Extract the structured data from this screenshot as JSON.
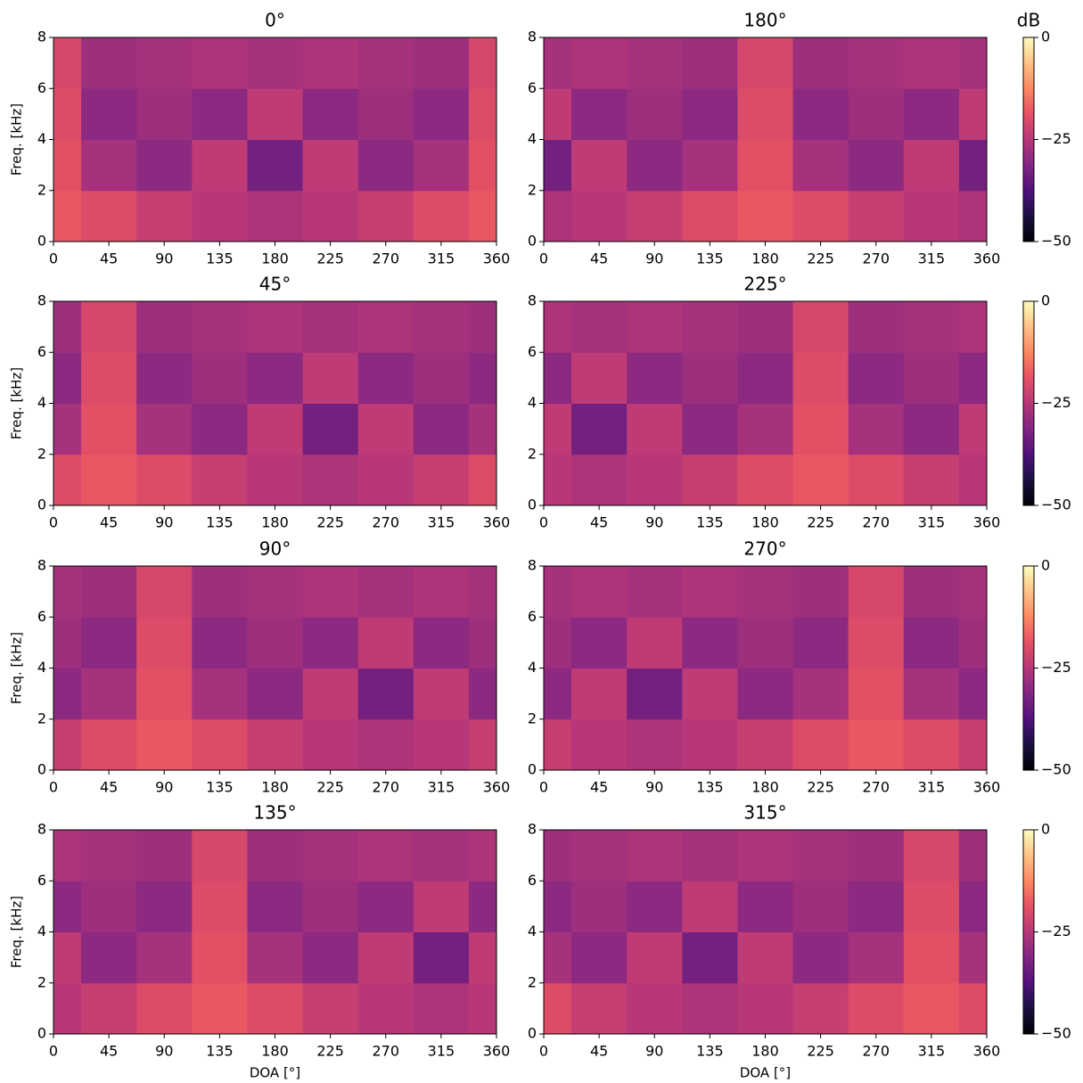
{
  "chart_data": [
    {
      "type": "heatmap",
      "title": "0°",
      "ylabel": "Freq. [kHz]",
      "x": [
        0,
        45,
        90,
        135,
        180,
        225,
        270,
        315,
        360
      ],
      "y": [
        1,
        3,
        5,
        7
      ],
      "xlim": [
        0,
        360
      ],
      "ylim": [
        0,
        8
      ],
      "xticks": [
        0,
        45,
        90,
        135,
        180,
        225,
        270,
        315,
        360
      ],
      "yticks": [
        0,
        2,
        4,
        6,
        8
      ],
      "zlim": [
        -50,
        0
      ],
      "colormap": "magma",
      "values": [
        [
          -18,
          -20,
          -23,
          -25,
          -26,
          -25,
          -23,
          -20,
          -18
        ],
        [
          -19,
          -27,
          -30,
          -24,
          -33,
          -24,
          -30,
          -27,
          -19
        ],
        [
          -20,
          -30,
          -28,
          -30,
          -24,
          -30,
          -28,
          -30,
          -20
        ],
        [
          -21,
          -28,
          -27,
          -26,
          -27,
          -26,
          -27,
          -28,
          -21
        ]
      ]
    },
    {
      "type": "heatmap",
      "title": "180°",
      "x": [
        0,
        45,
        90,
        135,
        180,
        225,
        270,
        315,
        360
      ],
      "y": [
        1,
        3,
        5,
        7
      ],
      "xlim": [
        0,
        360
      ],
      "ylim": [
        0,
        8
      ],
      "xticks": [
        0,
        45,
        90,
        135,
        180,
        225,
        270,
        315,
        360
      ],
      "yticks": [
        0,
        2,
        4,
        6,
        8
      ],
      "zlim": [
        -50,
        0
      ],
      "colormap": "magma",
      "colorbar": {
        "label": "dB",
        "ticks": [
          0,
          {
            "value": -25,
            "label": "−25"
          },
          {
            "value": -50,
            "label": "−50"
          }
        ]
      },
      "values": [
        [
          -26,
          -25,
          -23,
          -20,
          -18,
          -20,
          -23,
          -25,
          -26
        ],
        [
          -33,
          -24,
          -30,
          -27,
          -19,
          -27,
          -30,
          -24,
          -33
        ],
        [
          -24,
          -30,
          -28,
          -30,
          -20,
          -30,
          -28,
          -30,
          -24
        ],
        [
          -27,
          -26,
          -27,
          -28,
          -21,
          -28,
          -27,
          -26,
          -27
        ]
      ]
    },
    {
      "type": "heatmap",
      "title": "45°",
      "ylabel": "Freq. [kHz]",
      "x": [
        0,
        45,
        90,
        135,
        180,
        225,
        270,
        315,
        360
      ],
      "y": [
        1,
        3,
        5,
        7
      ],
      "xlim": [
        0,
        360
      ],
      "ylim": [
        0,
        8
      ],
      "xticks": [
        0,
        45,
        90,
        135,
        180,
        225,
        270,
        315,
        360
      ],
      "yticks": [
        0,
        2,
        4,
        6,
        8
      ],
      "zlim": [
        -50,
        0
      ],
      "colormap": "magma",
      "values": [
        [
          -20,
          -18,
          -20,
          -23,
          -25,
          -26,
          -25,
          -23,
          -20
        ],
        [
          -27,
          -19,
          -27,
          -30,
          -24,
          -33,
          -24,
          -30,
          -27
        ],
        [
          -30,
          -20,
          -30,
          -28,
          -30,
          -24,
          -30,
          -28,
          -30
        ],
        [
          -28,
          -21,
          -28,
          -27,
          -26,
          -27,
          -26,
          -27,
          -28
        ]
      ]
    },
    {
      "type": "heatmap",
      "title": "225°",
      "x": [
        0,
        45,
        90,
        135,
        180,
        225,
        270,
        315,
        360
      ],
      "y": [
        1,
        3,
        5,
        7
      ],
      "xlim": [
        0,
        360
      ],
      "ylim": [
        0,
        8
      ],
      "xticks": [
        0,
        45,
        90,
        135,
        180,
        225,
        270,
        315,
        360
      ],
      "yticks": [
        0,
        2,
        4,
        6,
        8
      ],
      "zlim": [
        -50,
        0
      ],
      "colormap": "magma",
      "colorbar": {
        "ticks": [
          0,
          {
            "value": -25,
            "label": "−25"
          },
          {
            "value": -50,
            "label": "−50"
          }
        ]
      },
      "values": [
        [
          -25,
          -26,
          -25,
          -23,
          -20,
          -18,
          -20,
          -23,
          -25
        ],
        [
          -24,
          -33,
          -24,
          -30,
          -27,
          -19,
          -27,
          -30,
          -24
        ],
        [
          -30,
          -24,
          -30,
          -28,
          -30,
          -20,
          -30,
          -28,
          -30
        ],
        [
          -26,
          -27,
          -26,
          -27,
          -28,
          -21,
          -28,
          -27,
          -26
        ]
      ]
    },
    {
      "type": "heatmap",
      "title": "90°",
      "ylabel": "Freq. [kHz]",
      "x": [
        0,
        45,
        90,
        135,
        180,
        225,
        270,
        315,
        360
      ],
      "y": [
        1,
        3,
        5,
        7
      ],
      "xlim": [
        0,
        360
      ],
      "ylim": [
        0,
        8
      ],
      "xticks": [
        0,
        45,
        90,
        135,
        180,
        225,
        270,
        315,
        360
      ],
      "yticks": [
        0,
        2,
        4,
        6,
        8
      ],
      "zlim": [
        -50,
        0
      ],
      "colormap": "magma",
      "values": [
        [
          -23,
          -20,
          -18,
          -20,
          -23,
          -25,
          -26,
          -25,
          -23
        ],
        [
          -30,
          -27,
          -19,
          -27,
          -30,
          -24,
          -33,
          -24,
          -30
        ],
        [
          -28,
          -30,
          -20,
          -30,
          -28,
          -30,
          -24,
          -30,
          -28
        ],
        [
          -27,
          -28,
          -21,
          -28,
          -27,
          -26,
          -27,
          -26,
          -27
        ]
      ]
    },
    {
      "type": "heatmap",
      "title": "270°",
      "x": [
        0,
        45,
        90,
        135,
        180,
        225,
        270,
        315,
        360
      ],
      "y": [
        1,
        3,
        5,
        7
      ],
      "xlim": [
        0,
        360
      ],
      "ylim": [
        0,
        8
      ],
      "xticks": [
        0,
        45,
        90,
        135,
        180,
        225,
        270,
        315,
        360
      ],
      "yticks": [
        0,
        2,
        4,
        6,
        8
      ],
      "zlim": [
        -50,
        0
      ],
      "colormap": "magma",
      "colorbar": {
        "ticks": [
          0,
          {
            "value": -25,
            "label": "−25"
          },
          {
            "value": -50,
            "label": "−50"
          }
        ]
      },
      "values": [
        [
          -23,
          -25,
          -26,
          -25,
          -23,
          -20,
          -18,
          -20,
          -23
        ],
        [
          -30,
          -24,
          -33,
          -24,
          -30,
          -27,
          -19,
          -27,
          -30
        ],
        [
          -28,
          -30,
          -24,
          -30,
          -28,
          -30,
          -20,
          -30,
          -28
        ],
        [
          -27,
          -26,
          -27,
          -26,
          -27,
          -28,
          -21,
          -28,
          -27
        ]
      ]
    },
    {
      "type": "heatmap",
      "title": "135°",
      "ylabel": "Freq. [kHz]",
      "xlabel": "DOA [°]",
      "x": [
        0,
        45,
        90,
        135,
        180,
        225,
        270,
        315,
        360
      ],
      "y": [
        1,
        3,
        5,
        7
      ],
      "xlim": [
        0,
        360
      ],
      "ylim": [
        0,
        8
      ],
      "xticks": [
        0,
        45,
        90,
        135,
        180,
        225,
        270,
        315,
        360
      ],
      "yticks": [
        0,
        2,
        4,
        6,
        8
      ],
      "zlim": [
        -50,
        0
      ],
      "colormap": "magma",
      "values": [
        [
          -25,
          -23,
          -20,
          -18,
          -20,
          -23,
          -25,
          -26,
          -25
        ],
        [
          -24,
          -30,
          -27,
          -19,
          -27,
          -30,
          -24,
          -33,
          -24
        ],
        [
          -30,
          -28,
          -30,
          -20,
          -30,
          -28,
          -30,
          -24,
          -30
        ],
        [
          -26,
          -27,
          -28,
          -21,
          -28,
          -27,
          -26,
          -27,
          -26
        ]
      ]
    },
    {
      "type": "heatmap",
      "title": "315°",
      "xlabel": "DOA [°]",
      "x": [
        0,
        45,
        90,
        135,
        180,
        225,
        270,
        315,
        360
      ],
      "y": [
        1,
        3,
        5,
        7
      ],
      "xlim": [
        0,
        360
      ],
      "ylim": [
        0,
        8
      ],
      "xticks": [
        0,
        45,
        90,
        135,
        180,
        225,
        270,
        315,
        360
      ],
      "yticks": [
        0,
        2,
        4,
        6,
        8
      ],
      "zlim": [
        -50,
        0
      ],
      "colormap": "magma",
      "colorbar": {
        "ticks": [
          0,
          {
            "value": -25,
            "label": "−25"
          },
          {
            "value": -50,
            "label": "−50"
          }
        ]
      },
      "values": [
        [
          -20,
          -23,
          -25,
          -26,
          -25,
          -23,
          -20,
          -18,
          -20
        ],
        [
          -27,
          -30,
          -24,
          -33,
          -24,
          -30,
          -27,
          -19,
          -27
        ],
        [
          -30,
          -28,
          -30,
          -24,
          -30,
          -28,
          -30,
          -20,
          -30
        ],
        [
          -28,
          -27,
          -26,
          -27,
          -26,
          -27,
          -28,
          -21,
          -28
        ]
      ]
    }
  ]
}
